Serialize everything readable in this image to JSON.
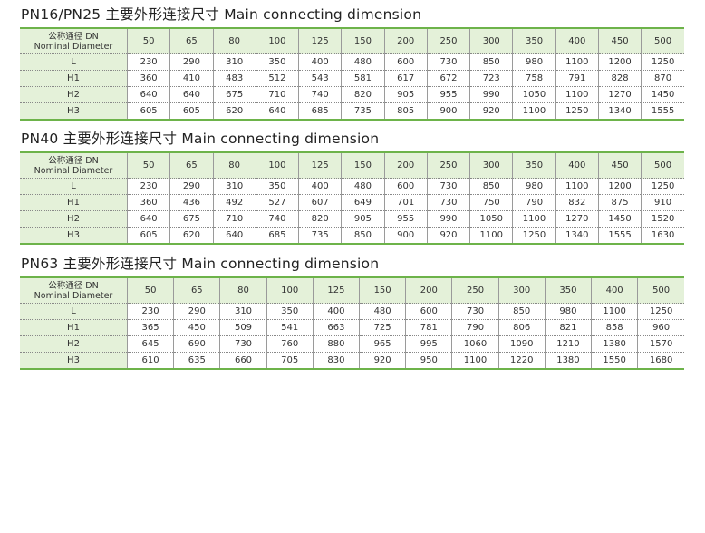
{
  "tables": [
    {
      "title": "PN16/PN25 主要外形连接尺寸 Main connecting dimension",
      "header_label_cn": "公称通径 DN",
      "header_label_en": "Nominal Diameter",
      "dn": [
        "50",
        "65",
        "80",
        "100",
        "125",
        "150",
        "200",
        "250",
        "300",
        "350",
        "400",
        "450",
        "500"
      ],
      "rows": [
        {
          "label": "L",
          "values": [
            "230",
            "290",
            "310",
            "350",
            "400",
            "480",
            "600",
            "730",
            "850",
            "980",
            "1100",
            "1200",
            "1250"
          ]
        },
        {
          "label": "H1",
          "values": [
            "360",
            "410",
            "483",
            "512",
            "543",
            "581",
            "617",
            "672",
            "723",
            "758",
            "791",
            "828",
            "870"
          ]
        },
        {
          "label": "H2",
          "values": [
            "640",
            "640",
            "675",
            "710",
            "740",
            "820",
            "905",
            "955",
            "990",
            "1050",
            "1100",
            "1270",
            "1450"
          ]
        },
        {
          "label": "H3",
          "values": [
            "605",
            "605",
            "620",
            "640",
            "685",
            "735",
            "805",
            "900",
            "920",
            "1100",
            "1250",
            "1340",
            "1555"
          ]
        }
      ]
    },
    {
      "title": "PN40 主要外形连接尺寸 Main connecting dimension",
      "header_label_cn": "公称通径 DN",
      "header_label_en": "Nominal Diameter",
      "dn": [
        "50",
        "65",
        "80",
        "100",
        "125",
        "150",
        "200",
        "250",
        "300",
        "350",
        "400",
        "450",
        "500"
      ],
      "rows": [
        {
          "label": "L",
          "values": [
            "230",
            "290",
            "310",
            "350",
            "400",
            "480",
            "600",
            "730",
            "850",
            "980",
            "1100",
            "1200",
            "1250"
          ]
        },
        {
          "label": "H1",
          "values": [
            "360",
            "436",
            "492",
            "527",
            "607",
            "649",
            "701",
            "730",
            "750",
            "790",
            "832",
            "875",
            "910"
          ]
        },
        {
          "label": "H2",
          "values": [
            "640",
            "675",
            "710",
            "740",
            "820",
            "905",
            "955",
            "990",
            "1050",
            "1100",
            "1270",
            "1450",
            "1520"
          ]
        },
        {
          "label": "H3",
          "values": [
            "605",
            "620",
            "640",
            "685",
            "735",
            "850",
            "900",
            "920",
            "1100",
            "1250",
            "1340",
            "1555",
            "1630"
          ]
        }
      ]
    },
    {
      "title": "PN63 主要外形连接尺寸 Main connecting dimension",
      "header_label_cn": "公称通径 DN",
      "header_label_en": "Nominal Diameter",
      "dn": [
        "50",
        "65",
        "80",
        "100",
        "125",
        "150",
        "200",
        "250",
        "300",
        "350",
        "400",
        "500"
      ],
      "rows": [
        {
          "label": "L",
          "values": [
            "230",
            "290",
            "310",
            "350",
            "400",
            "480",
            "600",
            "730",
            "850",
            "980",
            "1100",
            "1250"
          ]
        },
        {
          "label": "H1",
          "values": [
            "365",
            "450",
            "509",
            "541",
            "663",
            "725",
            "781",
            "790",
            "806",
            "821",
            "858",
            "960"
          ]
        },
        {
          "label": "H2",
          "values": [
            "645",
            "690",
            "730",
            "760",
            "880",
            "965",
            "995",
            "1060",
            "1090",
            "1210",
            "1380",
            "1570"
          ]
        },
        {
          "label": "H3",
          "values": [
            "610",
            "635",
            "660",
            "705",
            "830",
            "920",
            "950",
            "1100",
            "1220",
            "1380",
            "1550",
            "1680"
          ]
        }
      ]
    }
  ]
}
